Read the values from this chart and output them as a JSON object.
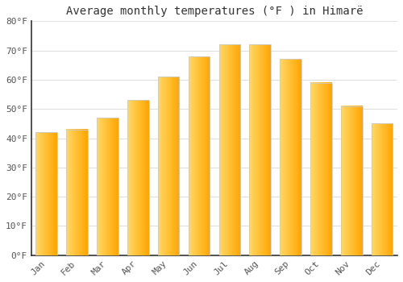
{
  "title": "Average monthly temperatures (°F ) in Himarë",
  "months": [
    "Jan",
    "Feb",
    "Mar",
    "Apr",
    "May",
    "Jun",
    "Jul",
    "Aug",
    "Sep",
    "Oct",
    "Nov",
    "Dec"
  ],
  "values": [
    42,
    43,
    47,
    53,
    61,
    68,
    72,
    72,
    67,
    59,
    51,
    45
  ],
  "bar_color_left": "#FFD966",
  "bar_color_right": "#FFA500",
  "bar_edge_color": "#CCCCCC",
  "background_color": "#FFFFFF",
  "grid_color": "#DDDDDD",
  "ylim": [
    0,
    80
  ],
  "yticks": [
    0,
    10,
    20,
    30,
    40,
    50,
    60,
    70,
    80
  ],
  "title_fontsize": 10,
  "tick_fontsize": 8,
  "bar_width": 0.7
}
